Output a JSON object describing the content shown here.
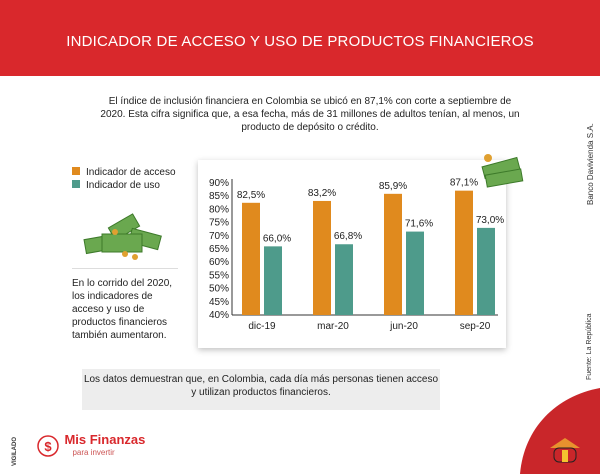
{
  "header": {
    "title": "INDICADOR DE ACCESO Y USO DE PRODUCTOS FINANCIEROS"
  },
  "intro": "El índice de inclusión financiera en Colombia se ubicó en 87,1% con corte a septiembre de 2020. Esta cifra significa que, a esa fecha, más de 31 millones de adultos tenían, al menos, un producto de depósito o crédito.",
  "side_text": "En lo corrido del 2020, los indicadores de acceso y uso de productos financieros también aumentaron.",
  "note": "Los datos demuestran que, en Colombia, cada día más personas tienen acceso y utilizan productos financieros.",
  "credit": "Banco Davivienda S.A.",
  "source": "Fuente: La República",
  "vigilado": "VIGILADO",
  "logo": {
    "name": "Mis Finanzas",
    "tagline": "para invertir"
  },
  "colors": {
    "brand_red": "#d9282c",
    "acceso": "#e08a1e",
    "uso": "#4e9b8b"
  },
  "chart_data": {
    "type": "bar",
    "categories": [
      "dic-19",
      "mar-20",
      "jun-20",
      "sep-20"
    ],
    "series": [
      {
        "name": "Indicador de acceso",
        "values": [
          82.5,
          83.2,
          85.9,
          87.1
        ],
        "labels": [
          "82,5%",
          "83,2%",
          "85,9%",
          "87,1%"
        ]
      },
      {
        "name": "Indicador de uso",
        "values": [
          66.0,
          66.8,
          71.6,
          73.0
        ],
        "labels": [
          "66,0%",
          "66,8%",
          "71,6%",
          "73,0%"
        ]
      }
    ],
    "ylim": [
      40,
      90
    ],
    "yticks": [
      "40%",
      "45%",
      "50%",
      "55%",
      "60%",
      "65%",
      "70%",
      "75%",
      "80%",
      "85%",
      "90%"
    ],
    "legend": "top-left",
    "grid": false
  }
}
